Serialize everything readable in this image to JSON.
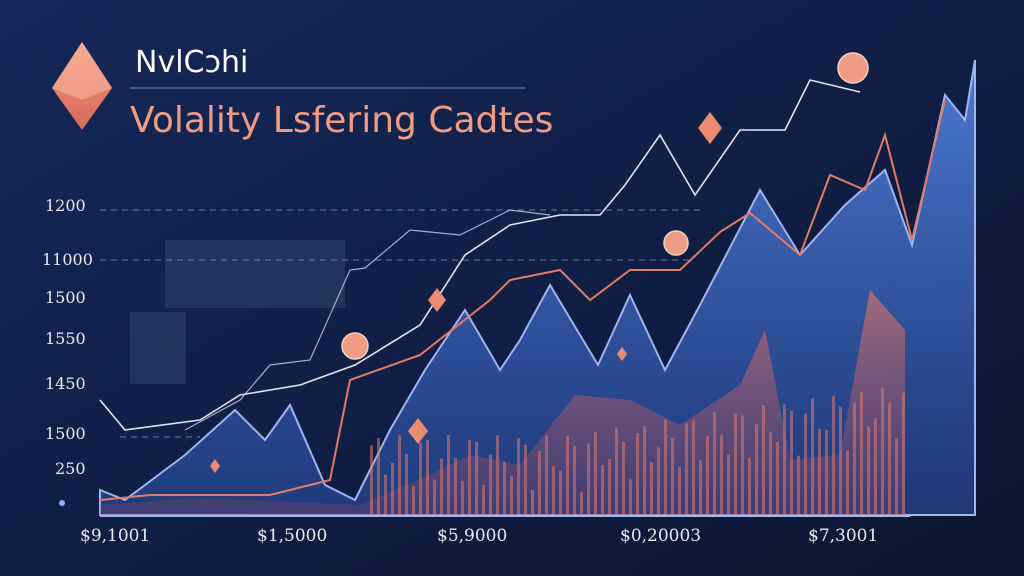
{
  "header": {
    "brand": "NvlCɔhi",
    "title": "Volality Lsfering Cadtes"
  },
  "axis": {
    "y_labels": [
      "1200",
      "11000",
      "1500",
      "1550",
      "1450",
      "1500",
      "250"
    ],
    "x_labels": [
      "$9,1001",
      "$1,5000",
      "$5,9000",
      "$0,20003",
      "$7,3001"
    ]
  }
}
